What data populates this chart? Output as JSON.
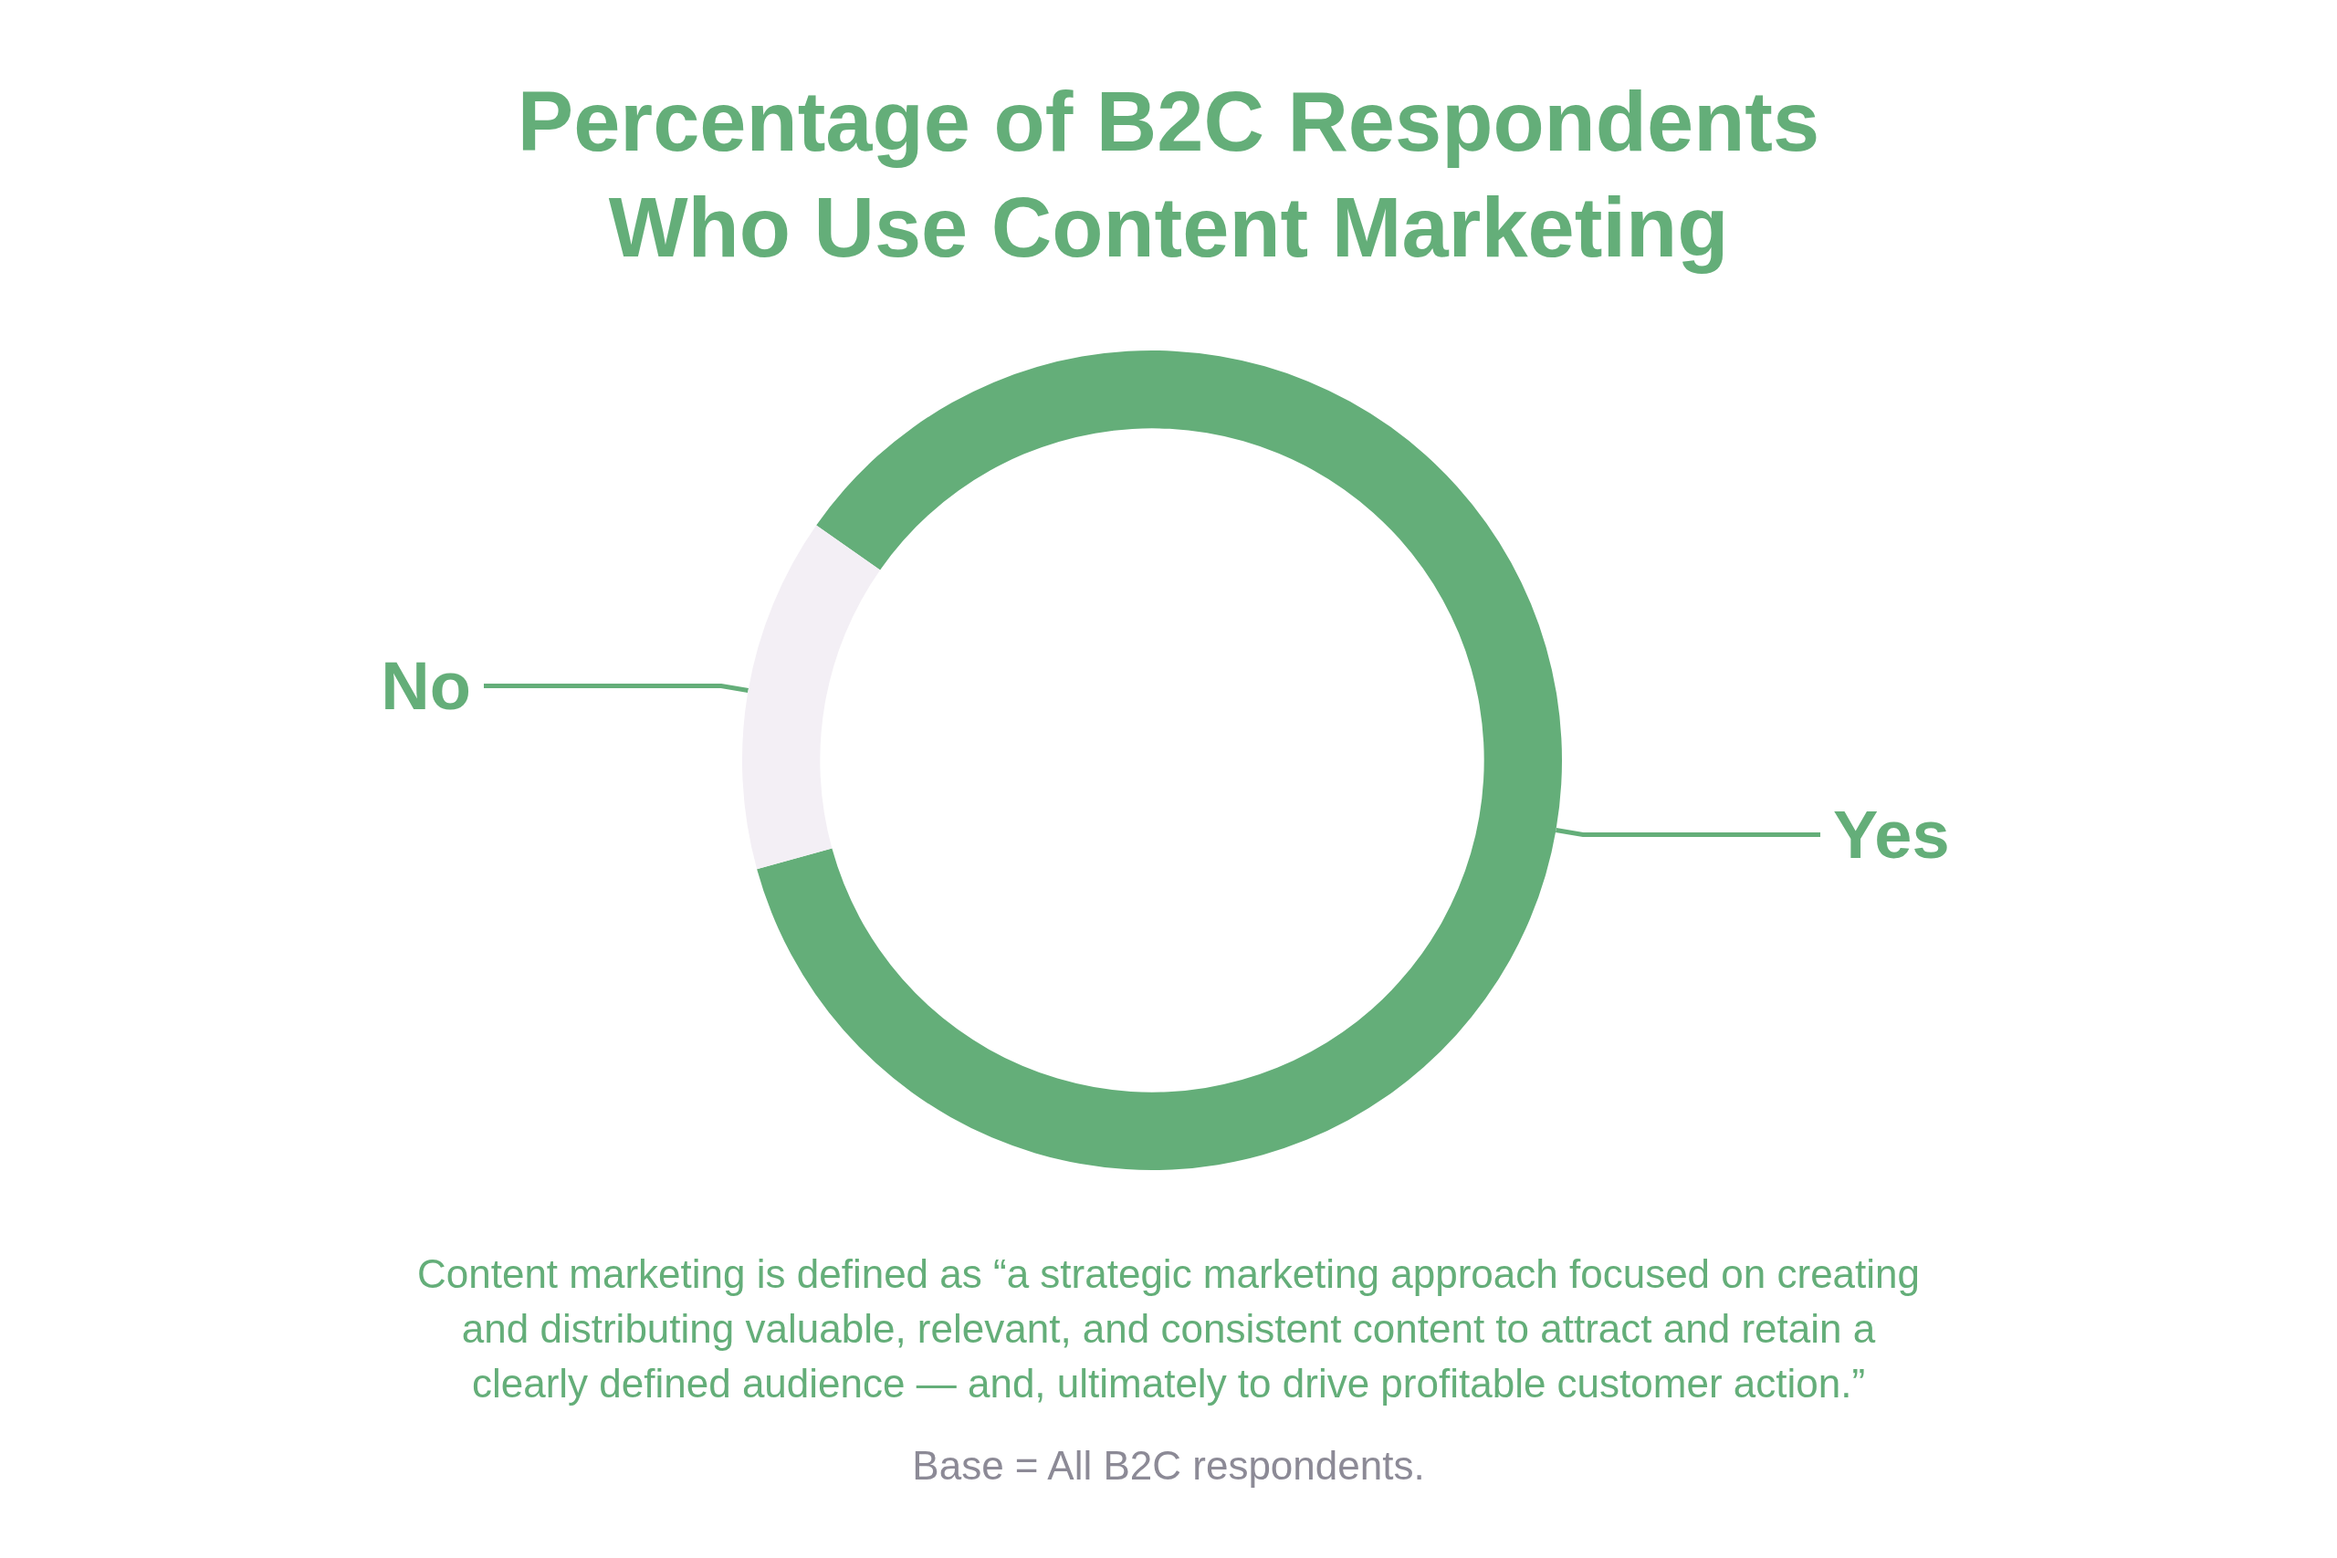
{
  "chart_data": {
    "type": "donut",
    "title": "Percentage of B2C Respondents\nWho Use Content Marketing",
    "categories": [
      "Yes",
      "No"
    ],
    "values": [
      86,
      14
    ],
    "colors": [
      "#64ae79",
      "#f3eff5"
    ],
    "annotations": [
      "Content marketing is defined as “a strategic marketing approach focused on creating\nand distributing valuable, relevant, and consistent content to attract and retain a\nclearly defined audience — and, ultimately to drive profitable customer action.”",
      "Base = All B2C respondents."
    ]
  }
}
